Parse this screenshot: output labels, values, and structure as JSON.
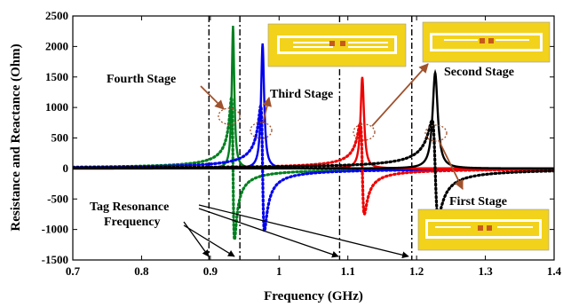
{
  "chart_data": {
    "type": "line",
    "title": "",
    "xlabel": "Frequency (GHz)",
    "ylabel": "Resistance and Reactance (Ohm)",
    "xlim": [
      0.7,
      1.4
    ],
    "ylim": [
      -1500,
      2500
    ],
    "x_ticks": [
      "0.7",
      "0.8",
      "0.9",
      "1",
      "1.1",
      "1.2",
      "1.3",
      "1.4"
    ],
    "y_ticks": [
      "2500",
      "2000",
      "1500",
      "1000",
      "500",
      "0",
      "-500",
      "-1000",
      "-1500"
    ],
    "grid": false,
    "legend": "none",
    "series": [
      {
        "color": "#00801f",
        "style": "solid",
        "kind": "resistance",
        "f0": 0.933,
        "peak": 2340,
        "width": 0.0022
      },
      {
        "color": "#00801f",
        "style": "dotted",
        "kind": "reactance",
        "f0": 0.933,
        "peak": 1170,
        "width": 0.0022
      },
      {
        "color": "#0000ee",
        "style": "solid",
        "kind": "resistance",
        "f0": 0.976,
        "peak": 2050,
        "width": 0.0027
      },
      {
        "color": "#0000ee",
        "style": "dotted",
        "kind": "reactance",
        "f0": 0.976,
        "peak": 1030,
        "width": 0.0027
      },
      {
        "color": "#ee0000",
        "style": "solid",
        "kind": "resistance",
        "f0": 1.121,
        "peak": 1500,
        "width": 0.003
      },
      {
        "color": "#ee0000",
        "style": "dotted",
        "kind": "reactance",
        "f0": 1.121,
        "peak": 750,
        "width": 0.003
      },
      {
        "color": "#000000",
        "style": "solid",
        "kind": "resistance",
        "f0": 1.227,
        "peak": 1570,
        "width": 0.0045
      },
      {
        "color": "#000000",
        "style": "dotted",
        "kind": "reactance",
        "f0": 1.227,
        "peak": 790,
        "width": 0.0045
      }
    ],
    "resonance_lines": [
      0.898,
      0.943,
      1.088,
      1.193
    ],
    "annotations": {
      "fourth": "Fourth Stage",
      "third": "Third Stage",
      "second": "Second Stage",
      "first": "First Stage",
      "tag_line1": "Tag Resonance",
      "tag_line2": "Frequency"
    },
    "colors": {
      "arrow": "#a0522d",
      "inset_fill": "#f2d21b",
      "inset_line": "#ffffff"
    }
  }
}
